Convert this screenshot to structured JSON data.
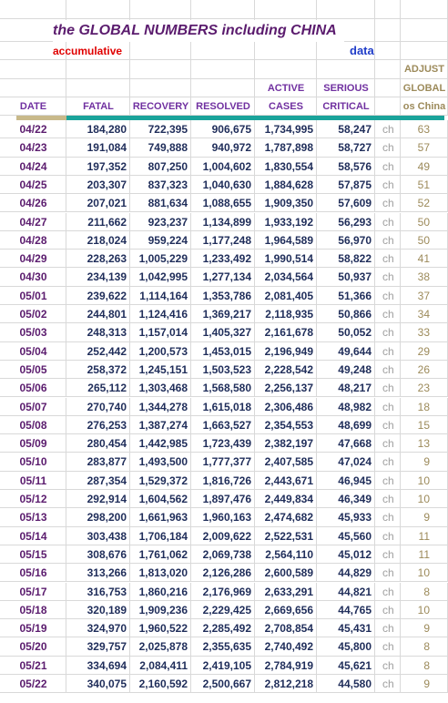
{
  "header": {
    "title": "the GLOBAL NUMBERS including CHINA",
    "subtitle": "accumulative",
    "source_note": "data",
    "column_header_row1": [
      "ADJUST"
    ],
    "column_header_row2": [
      "ACTIVE",
      "SERIOUS",
      "GLOBAL"
    ],
    "column_header_row3": [
      "DATE",
      "FATAL",
      "RECOVERY",
      "RESOLVED",
      "CASES",
      "CRITICAL",
      "os China"
    ]
  },
  "table": {
    "rows": [
      [
        "04/22",
        "184,280",
        "722,395",
        "906,675",
        "1,734,995",
        "58,247",
        "ch",
        "63"
      ],
      [
        "04/23",
        "191,084",
        "749,888",
        "940,972",
        "1,787,898",
        "58,727",
        "ch",
        "57"
      ],
      [
        "04/24",
        "197,352",
        "807,250",
        "1,004,602",
        "1,830,554",
        "58,576",
        "ch",
        "49"
      ],
      [
        "04/25",
        "203,307",
        "837,323",
        "1,040,630",
        "1,884,628",
        "57,875",
        "ch",
        "51"
      ],
      [
        "04/26",
        "207,021",
        "881,634",
        "1,088,655",
        "1,909,350",
        "57,609",
        "ch",
        "52"
      ],
      [
        "04/27",
        "211,662",
        "923,237",
        "1,134,899",
        "1,933,192",
        "56,293",
        "ch",
        "50"
      ],
      [
        "04/28",
        "218,024",
        "959,224",
        "1,177,248",
        "1,964,589",
        "56,970",
        "ch",
        "50"
      ],
      [
        "04/29",
        "228,263",
        "1,005,229",
        "1,233,492",
        "1,990,514",
        "58,822",
        "ch",
        "41"
      ],
      [
        "04/30",
        "234,139",
        "1,042,995",
        "1,277,134",
        "2,034,564",
        "50,937",
        "ch",
        "38"
      ],
      [
        "05/01",
        "239,622",
        "1,114,164",
        "1,353,786",
        "2,081,405",
        "51,366",
        "ch",
        "37"
      ],
      [
        "05/02",
        "244,801",
        "1,124,416",
        "1,369,217",
        "2,118,935",
        "50,866",
        "ch",
        "34"
      ],
      [
        "05/03",
        "248,313",
        "1,157,014",
        "1,405,327",
        "2,161,678",
        "50,052",
        "ch",
        "33"
      ],
      [
        "05/04",
        "252,442",
        "1,200,573",
        "1,453,015",
        "2,196,949",
        "49,644",
        "ch",
        "29"
      ],
      [
        "05/05",
        "258,372",
        "1,245,151",
        "1,503,523",
        "2,228,542",
        "49,248",
        "ch",
        "26"
      ],
      [
        "05/06",
        "265,112",
        "1,303,468",
        "1,568,580",
        "2,256,137",
        "48,217",
        "ch",
        "23"
      ],
      [
        "05/07",
        "270,740",
        "1,344,278",
        "1,615,018",
        "2,306,486",
        "48,982",
        "ch",
        "18"
      ],
      [
        "05/08",
        "276,253",
        "1,387,274",
        "1,663,527",
        "2,354,553",
        "48,699",
        "ch",
        "15"
      ],
      [
        "05/09",
        "280,454",
        "1,442,985",
        "1,723,439",
        "2,382,197",
        "47,668",
        "ch",
        "13"
      ],
      [
        "05/10",
        "283,877",
        "1,493,500",
        "1,777,377",
        "2,407,585",
        "47,024",
        "ch",
        "9"
      ],
      [
        "05/11",
        "287,354",
        "1,529,372",
        "1,816,726",
        "2,443,671",
        "46,945",
        "ch",
        "10"
      ],
      [
        "05/12",
        "292,914",
        "1,604,562",
        "1,897,476",
        "2,449,834",
        "46,349",
        "ch",
        "10"
      ],
      [
        "05/13",
        "298,200",
        "1,661,963",
        "1,960,163",
        "2,474,682",
        "45,933",
        "ch",
        "9"
      ],
      [
        "05/14",
        "303,438",
        "1,706,184",
        "2,009,622",
        "2,522,531",
        "45,560",
        "ch",
        "11"
      ],
      [
        "05/15",
        "308,676",
        "1,761,062",
        "2,069,738",
        "2,564,110",
        "45,012",
        "ch",
        "11"
      ],
      [
        "05/16",
        "313,266",
        "1,813,020",
        "2,126,286",
        "2,600,589",
        "44,829",
        "ch",
        "10"
      ],
      [
        "05/17",
        "316,753",
        "1,860,216",
        "2,176,969",
        "2,633,291",
        "44,821",
        "ch",
        "8"
      ],
      [
        "05/18",
        "320,189",
        "1,909,236",
        "2,229,425",
        "2,669,656",
        "44,765",
        "ch",
        "10"
      ],
      [
        "05/19",
        "324,970",
        "1,960,522",
        "2,285,492",
        "2,708,854",
        "45,431",
        "ch",
        "9"
      ],
      [
        "05/20",
        "329,757",
        "2,025,878",
        "2,355,635",
        "2,740,492",
        "45,800",
        "ch",
        "8"
      ],
      [
        "05/21",
        "334,694",
        "2,084,411",
        "2,419,105",
        "2,784,919",
        "45,621",
        "ch",
        "8"
      ],
      [
        "05/22",
        "340,075",
        "2,160,592",
        "2,500,667",
        "2,812,218",
        "44,580",
        "ch",
        "9"
      ]
    ]
  }
}
